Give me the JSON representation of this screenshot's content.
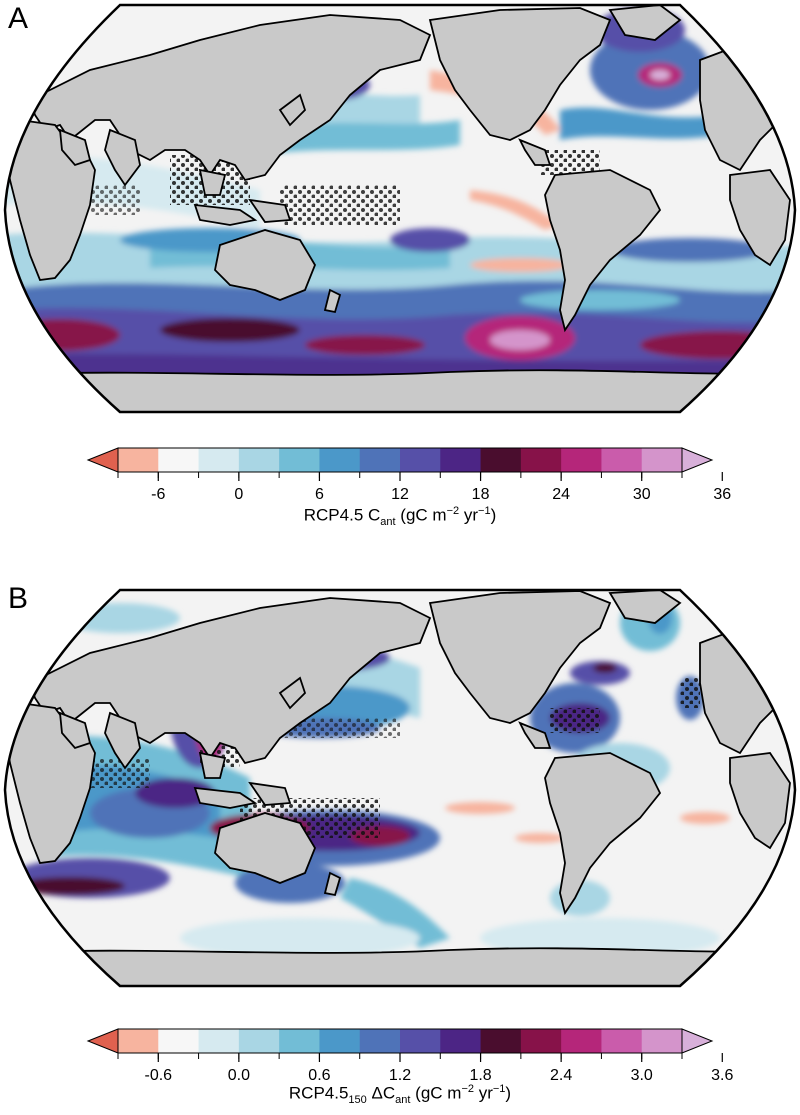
{
  "colors": {
    "land": "#c9c9c9",
    "ocean_base": "#f3f3f3",
    "stipple": "#111111",
    "colorbar": [
      "#e0614f",
      "#f7b49f",
      "#f7f7f7",
      "#d6eaf0",
      "#a9d6e4",
      "#72bdd6",
      "#4b98c9",
      "#4f73b8",
      "#5650a8",
      "#4c2585",
      "#4a0d2e",
      "#871249",
      "#b5267a",
      "#ca5cab",
      "#d494cb",
      "#d8b0da"
    ]
  },
  "panels": [
    {
      "letter": "A",
      "colorbar": {
        "ticks": [
          "-6",
          "0",
          "6",
          "12",
          "18",
          "24",
          "30",
          "36"
        ],
        "label_main": "RCP4.5 C",
        "label_sub": "ant",
        "label_units_pre": " (gC m",
        "label_sup1": "−2",
        "label_units_mid": " yr",
        "label_sup2": "−1",
        "label_units_post": ")"
      }
    },
    {
      "letter": "B",
      "colorbar": {
        "ticks": [
          "-0.6",
          "0.0",
          "0.6",
          "1.2",
          "1.8",
          "2.4",
          "3.0",
          "3.6"
        ],
        "label_main": "RCP4.5",
        "label_sub": "150",
        "label_delta": " ΔC",
        "label_sub2": "ant",
        "label_units_pre": " (gC m",
        "label_sup1": "−2",
        "label_units_mid": " yr",
        "label_sup2": "−1",
        "label_units_post": ")"
      }
    }
  ]
}
